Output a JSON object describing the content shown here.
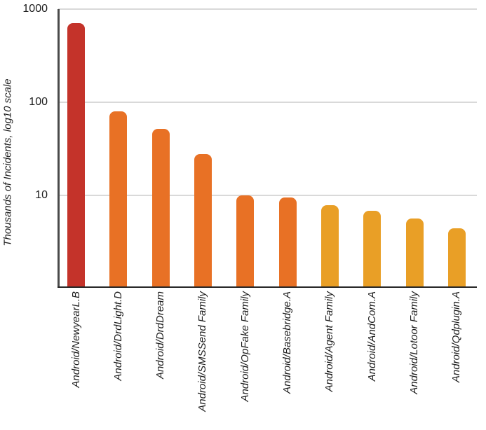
{
  "chart_data": {
    "type": "bar",
    "title": "",
    "xlabel": "",
    "ylabel": "Thousands of Incidents, log10 scale",
    "y_scale": "log10",
    "ylim": [
      1,
      1000
    ],
    "y_ticks": [
      "1000",
      "100",
      "10"
    ],
    "grid": true,
    "legend": false,
    "categories": [
      "Android/NewyearL.B",
      "Android/DrdLight.D",
      "Android/DrdDream",
      "Android/SMSSend Family",
      "Android/OpFake Family",
      "Android/Basebridge.A",
      "Android/Agent Family",
      "Android/AndCom.A",
      "Android/Lotoor Family",
      "Android/Qdplugin.A"
    ],
    "values": [
      710,
      80,
      52,
      28,
      10,
      9.5,
      7.8,
      6.8,
      5.6,
      4.4
    ],
    "bar_colors": [
      "#c4332a",
      "#e87125",
      "#e87125",
      "#e87125",
      "#e87125",
      "#e87125",
      "#e99f26",
      "#e99f26",
      "#e99f26",
      "#e99f26"
    ]
  },
  "colors": {
    "background": "#ffffff",
    "grid": "#d9d9d9",
    "y_axis": "#4a4a4a",
    "x_axis": "#262626",
    "text": "#1d1d1d"
  }
}
